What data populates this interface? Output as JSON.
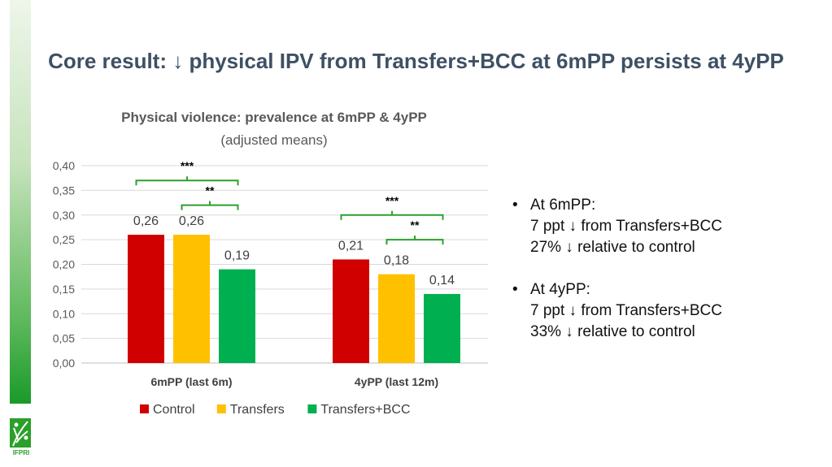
{
  "slide_title": "Core result: ↓ physical IPV from Transfers+BCC at 6mPP persists at 4yPP",
  "logo_text": "IFPRI",
  "bullets": [
    {
      "heading": "At 6mPP:",
      "lines": [
        "7 ppt ↓ from Transfers+BCC",
        "27% ↓ relative to control"
      ]
    },
    {
      "heading": "At 4yPP:",
      "lines": [
        "7 ppt ↓ from Transfers+BCC",
        "33% ↓ relative to control"
      ]
    }
  ],
  "chart_data": {
    "type": "bar",
    "title": "Physical violence: prevalence at 6mPP & 4yPP",
    "subtitle": "(adjusted means)",
    "categories": [
      "6mPP (last 6m)",
      "4yPP (last 12m)"
    ],
    "series": [
      {
        "name": "Control",
        "color": "#d00000",
        "values": [
          0.26,
          0.21
        ],
        "labels": [
          "0,26",
          "0,21"
        ]
      },
      {
        "name": "Transfers",
        "color": "#ffc000",
        "values": [
          0.26,
          0.18
        ],
        "labels": [
          "0,26",
          "0,18"
        ]
      },
      {
        "name": "Transfers+BCC",
        "color": "#00b050",
        "values": [
          0.19,
          0.14
        ],
        "labels": [
          "0,19",
          "0,14"
        ]
      }
    ],
    "ylim": [
      0,
      0.4
    ],
    "yticks": [
      "0,00",
      "0,05",
      "0,10",
      "0,15",
      "0,20",
      "0,25",
      "0,30",
      "0,35",
      "0,40"
    ],
    "grid": true,
    "legend": "bottom",
    "significance": [
      {
        "category": 0,
        "from": 0,
        "to": 2,
        "stars": "***",
        "level": 0.37
      },
      {
        "category": 0,
        "from": 1,
        "to": 2,
        "stars": "**",
        "level": 0.32
      },
      {
        "category": 1,
        "from": 0,
        "to": 2,
        "stars": "***",
        "level": 0.3
      },
      {
        "category": 1,
        "from": 1,
        "to": 2,
        "stars": "**",
        "level": 0.25
      }
    ]
  }
}
